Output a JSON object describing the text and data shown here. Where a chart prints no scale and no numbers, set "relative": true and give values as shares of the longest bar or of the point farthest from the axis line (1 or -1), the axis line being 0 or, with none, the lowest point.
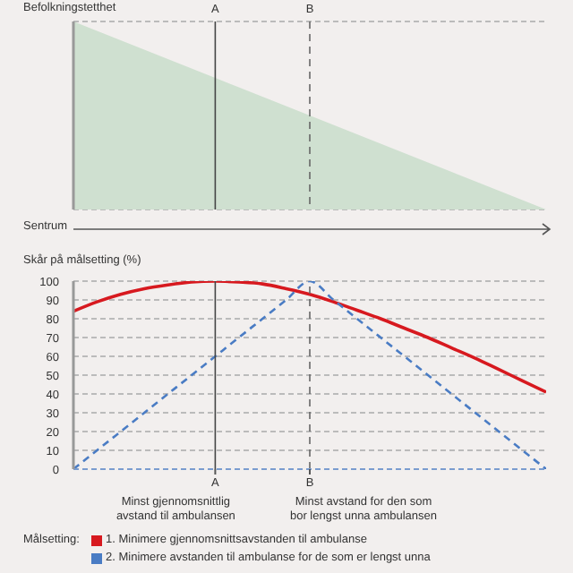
{
  "chart_data": [
    {
      "type": "area",
      "relative": true,
      "ylabel": "Befolkningstetthet",
      "xlabel": "Sentrum",
      "categories": [
        null,
        null,
        null,
        null,
        null,
        null,
        "A",
        null,
        null,
        null,
        "B",
        null,
        null,
        null,
        null,
        null,
        null,
        null,
        null,
        null,
        null
      ],
      "values": [
        1,
        0.95,
        0.9,
        0.85,
        0.8,
        0.75,
        0.7,
        0.65,
        0.6,
        0.55,
        0.5,
        0.45,
        0.4,
        0.35,
        0.3,
        0.25,
        0.2,
        0.15,
        0.1,
        0.05,
        0
      ],
      "color": "#cfe0d0",
      "grid": "y",
      "ref_lines": [
        {
          "axis": "x",
          "value": "A",
          "color": "#444444",
          "line_style": "solid"
        },
        {
          "axis": "x",
          "value": "B",
          "color": "#666666",
          "line_style": "dashed"
        }
      ]
    },
    {
      "type": "line",
      "ylabel": "Skår på målsetting (%)",
      "categories": [
        null,
        null,
        null,
        null,
        null,
        null,
        "A",
        null,
        null,
        null,
        "B",
        null,
        null,
        null,
        null,
        null,
        null,
        null,
        null,
        null,
        null
      ],
      "ylim": [
        0,
        100
      ],
      "yticks": [
        0,
        10,
        20,
        30,
        40,
        50,
        60,
        70,
        80,
        90,
        100
      ],
      "grid": "y",
      "legend": "bottom left",
      "legend_title": "Målsetting:",
      "marker": "none",
      "series": [
        {
          "name": "1. Minimere gjennomsnittsavstanden til ambulanse",
          "color": "#d7191f",
          "line_style": "solid",
          "values": [
            84,
            89,
            93,
            96,
            98,
            99.5,
            100,
            99.5,
            98.5,
            96,
            93,
            89,
            84.5,
            80,
            75,
            70,
            64.5,
            59,
            53,
            47,
            41
          ]
        },
        {
          "name": "2. Minimere avstanden til ambulanse for de som er lengst unna",
          "color": "#4a7cc4",
          "line_style": "dashed",
          "values": [
            0,
            10,
            20,
            30,
            40,
            50,
            60,
            70,
            80,
            90,
            100,
            90,
            80,
            70,
            60,
            50,
            40,
            30,
            20,
            10,
            0
          ]
        }
      ],
      "ref_lines": [
        {
          "axis": "x",
          "value": "A",
          "color": "#444444",
          "line_style": "solid"
        },
        {
          "axis": "x",
          "value": "B",
          "color": "#666666",
          "line_style": "dashed"
        }
      ],
      "annotations": [
        "Minst gjennomsnittlig avstand til ambulansen",
        "Minst avstand for den som bor lengst unna ambulansen"
      ]
    }
  ]
}
